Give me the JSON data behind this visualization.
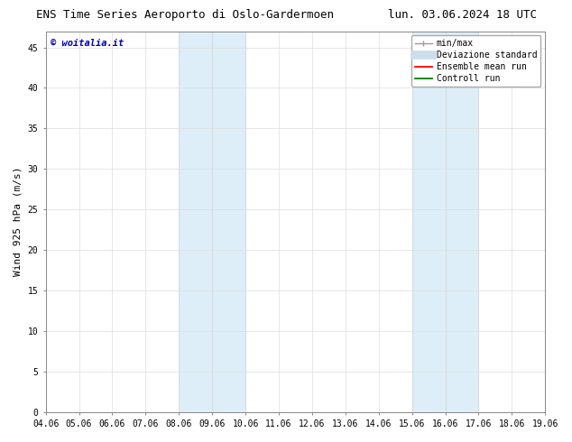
{
  "title_left": "ENS Time Series Aeroporto di Oslo-Gardermoen",
  "title_right": "lun. 03.06.2024 18 UTC",
  "ylabel": "Wind 925 hPa (m/s)",
  "xlabel_ticks": [
    "04.06",
    "05.06",
    "06.06",
    "07.06",
    "08.06",
    "09.06",
    "10.06",
    "11.06",
    "12.06",
    "13.06",
    "14.06",
    "15.06",
    "16.06",
    "17.06",
    "18.06",
    "19.06"
  ],
  "ylim": [
    0,
    47
  ],
  "yticks": [
    0,
    5,
    10,
    15,
    20,
    25,
    30,
    35,
    40,
    45
  ],
  "shaded_regions": [
    {
      "xmin": 4.0,
      "xmax": 6.0,
      "color": "#ddeef8"
    },
    {
      "xmin": 11.0,
      "xmax": 13.0,
      "color": "#ddeef8"
    }
  ],
  "shaded_vlines": [
    4.0,
    5.0,
    6.0,
    11.0,
    12.0,
    13.0
  ],
  "vline_color": "#b8d4ea",
  "watermark_text": "© woitalia.it",
  "watermark_color": "#0000bb",
  "background_color": "#ffffff",
  "plot_bg_color": "#ffffff",
  "legend_labels": [
    "min/max",
    "Deviazione standard",
    "Ensemble mean run",
    "Controll run"
  ],
  "legend_colors": [
    "#999999",
    "#ccddee",
    "#ff0000",
    "#008000"
  ],
  "grid_color": "#dddddd",
  "tick_label_fontsize": 7,
  "axis_label_fontsize": 8,
  "title_fontsize": 9,
  "legend_fontsize": 7
}
